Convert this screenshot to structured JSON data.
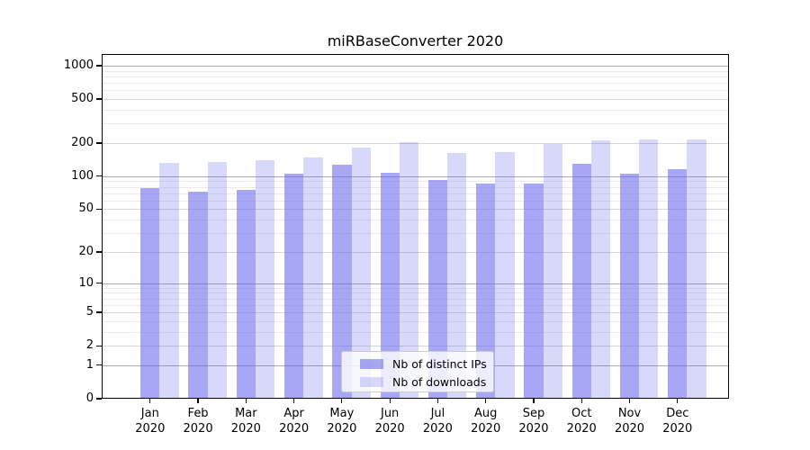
{
  "chart_data": {
    "type": "bar",
    "title": "miRBaseConverter 2020",
    "months": [
      "Jan",
      "Feb",
      "Mar",
      "Apr",
      "May",
      "Jun",
      "Jul",
      "Aug",
      "Sep",
      "Oct",
      "Nov",
      "Dec"
    ],
    "year_label": "2020",
    "categories": [
      "Jan 2020",
      "Feb 2020",
      "Mar 2020",
      "Apr 2020",
      "May 2020",
      "Jun 2020",
      "Jul 2020",
      "Aug 2020",
      "Sep 2020",
      "Oct 2020",
      "Nov 2020",
      "Dec 2020"
    ],
    "series": [
      {
        "name": "Nb of distinct IPs",
        "color": "#a7a7f2",
        "rgba": "rgba(102,102,238,0.575)",
        "values": [
          78,
          72,
          75,
          105,
          127,
          108,
          93,
          85,
          85,
          130,
          105,
          115
        ]
      },
      {
        "name": "Nb of downloads",
        "color": "#d8d8f7",
        "rgba": "rgba(102,102,238,0.255)",
        "values": [
          133,
          134,
          140,
          148,
          181,
          203,
          162,
          166,
          195,
          210,
          214,
          214
        ]
      }
    ],
    "y_axis": {
      "scale": "log1p",
      "ticks": [
        0,
        1,
        2,
        5,
        10,
        20,
        50,
        100,
        200,
        500,
        1000
      ],
      "major_gridline_values": [
        1,
        10,
        100,
        1000
      ],
      "max": 1000
    },
    "grid": true,
    "legend_position": "lower center",
    "grid_colors": {
      "major": "#ababab",
      "mid": "#d6d6d6",
      "minor": "#ebebeb"
    }
  }
}
